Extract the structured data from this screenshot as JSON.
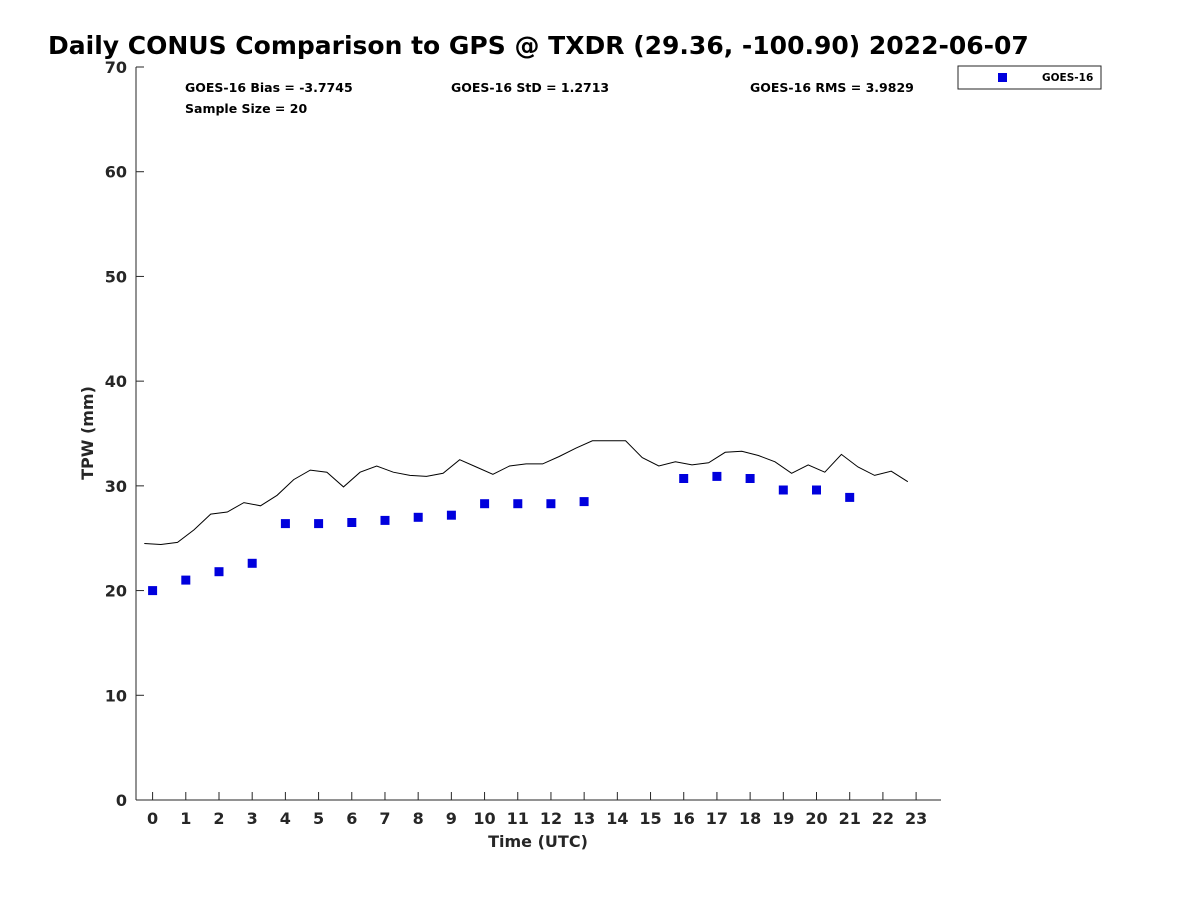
{
  "chart_data": {
    "type": "scatter",
    "title": "Daily CONUS Comparison to GPS @ TXDR (29.36, -100.90) 2022-06-07",
    "xlabel": "Time (UTC)",
    "ylabel": "TPW (mm)",
    "xlim": [
      -0.5,
      23.75
    ],
    "ylim": [
      0,
      70
    ],
    "x_ticks": [
      "0",
      "1",
      "2",
      "3",
      "4",
      "5",
      "6",
      "7",
      "8",
      "9",
      "10",
      "11",
      "12",
      "13",
      "14",
      "15",
      "16",
      "17",
      "18",
      "19",
      "20",
      "21",
      "22",
      "23"
    ],
    "y_ticks": [
      "0",
      "10",
      "20",
      "30",
      "40",
      "50",
      "60",
      "70"
    ],
    "grid": false,
    "legend_position": "outside-top-right",
    "stats": {
      "bias": "GOES-16 Bias = -3.7745",
      "std": "GOES-16 StD = 1.2713",
      "rms": "GOES-16 RMS = 3.9829",
      "sample": "Sample Size = 20"
    },
    "series": [
      {
        "name": "GPS",
        "kind": "line",
        "color": "#000000",
        "x": [
          -0.25,
          0.25,
          0.75,
          1.25,
          1.75,
          2.25,
          2.75,
          3.25,
          3.75,
          4.25,
          4.75,
          5.25,
          5.75,
          6.25,
          6.75,
          7.25,
          7.75,
          8.25,
          8.75,
          9.25,
          9.75,
          10.25,
          10.75,
          11.25,
          11.75,
          12.25,
          12.75,
          13.25,
          13.75,
          14.25,
          14.75,
          15.25,
          15.75,
          16.25,
          16.75,
          17.25,
          17.75,
          18.25,
          18.75,
          19.25,
          19.75,
          20.25,
          20.75,
          21.25,
          21.75,
          22.25,
          22.75
        ],
        "y": [
          24.5,
          24.4,
          24.6,
          25.8,
          27.3,
          27.5,
          28.4,
          28.1,
          29.1,
          30.6,
          31.5,
          31.3,
          29.9,
          31.3,
          31.9,
          31.3,
          31.0,
          30.9,
          31.2,
          32.5,
          31.8,
          31.1,
          31.9,
          32.1,
          32.1,
          32.8,
          33.6,
          34.3,
          34.3,
          34.3,
          32.7,
          31.9,
          32.3,
          32.0,
          32.2,
          33.2,
          33.3,
          32.9,
          32.3,
          31.2,
          32.0,
          31.3,
          33.0,
          31.8,
          31.0,
          31.4,
          30.4
        ]
      },
      {
        "name": "GOES-16",
        "kind": "scatter",
        "color": "#0000dd",
        "x": [
          0,
          1,
          2,
          3,
          4,
          5,
          6,
          7,
          8,
          9,
          10,
          11,
          12,
          13,
          16,
          17,
          18,
          19,
          20,
          21
        ],
        "y": [
          20.0,
          21.0,
          21.8,
          22.6,
          26.4,
          26.4,
          26.5,
          26.7,
          27.0,
          27.2,
          28.3,
          28.3,
          28.3,
          28.5,
          30.7,
          30.9,
          30.7,
          29.6,
          29.6,
          28.9
        ]
      }
    ]
  }
}
